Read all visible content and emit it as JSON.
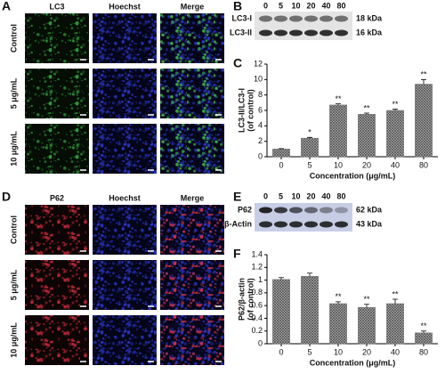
{
  "panel_labels": [
    "A",
    "B",
    "C",
    "D",
    "E",
    "F"
  ],
  "if_panels": [
    {
      "channels": [
        "LC3",
        "Hoechst",
        "Merge"
      ],
      "rows": [
        "Control",
        "5 μg/mL",
        "10 μg/mL"
      ]
    },
    {
      "channels": [
        "P62",
        "Hoechst",
        "Merge"
      ],
      "rows": [
        "Control",
        "5 μg/mL",
        "10 μg/mL"
      ]
    }
  ],
  "blots": [
    {
      "lanes": [
        "0",
        "5",
        "10",
        "20",
        "40",
        "80"
      ],
      "rows": [
        {
          "name": "LC3-I",
          "size": "18 kDa"
        },
        {
          "name": "LC3-II",
          "size": "16 kDa"
        }
      ]
    },
    {
      "lanes": [
        "0",
        "5",
        "10",
        "20",
        "40",
        "80"
      ],
      "rows": [
        {
          "name": "P62",
          "size": "62 kDa"
        },
        {
          "name": "β-Actin",
          "size": "43 kDa"
        }
      ]
    }
  ],
  "chart_data": [
    {
      "type": "bar",
      "ylabel": [
        "LC3-II/LC3-I",
        "(of control)"
      ],
      "xlabel": "Concentration (μg/mL)",
      "categories": [
        "0",
        "5",
        "10",
        "20",
        "40",
        "80"
      ],
      "values": [
        1,
        2.4,
        6.7,
        5.5,
        6.0,
        9.4
      ],
      "errors": [
        0.05,
        0.1,
        0.15,
        0.15,
        0.15,
        0.6
      ],
      "significance": [
        null,
        "*",
        "**",
        "**",
        "**",
        "**"
      ],
      "ylim": [
        0,
        12
      ],
      "yticks": [
        0,
        2,
        4,
        6,
        8,
        10,
        12
      ],
      "color": "#777777"
    },
    {
      "type": "bar",
      "ylabel": [
        "P62/β-actin",
        "(of control)"
      ],
      "xlabel": "Concentration (μg/mL)",
      "categories": [
        "0",
        "5",
        "10",
        "20",
        "40",
        "80"
      ],
      "values": [
        1.01,
        1.06,
        0.63,
        0.57,
        0.63,
        0.17
      ],
      "errors": [
        0.03,
        0.05,
        0.03,
        0.05,
        0.07,
        0.03
      ],
      "significance": [
        null,
        null,
        "**",
        "**",
        "**",
        "**"
      ],
      "ylim": [
        0,
        1.4
      ],
      "yticks": [
        0,
        0.2,
        0.4,
        0.6,
        0.8,
        1,
        1.2,
        1.4
      ],
      "color": "#777777"
    }
  ]
}
